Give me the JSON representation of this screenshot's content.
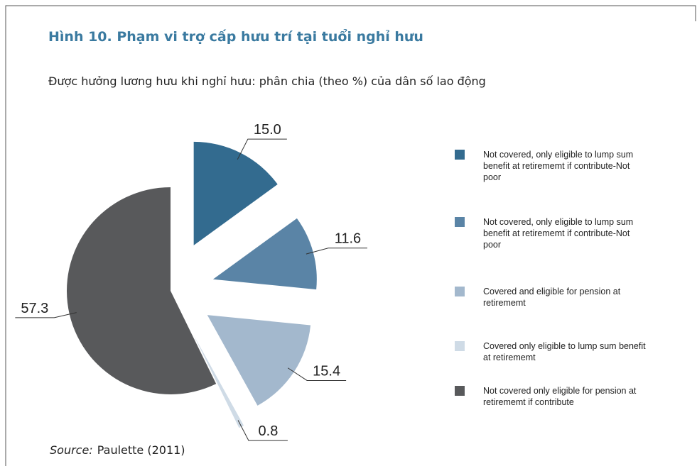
{
  "chart_data": {
    "type": "pie",
    "title": "Hình 10. Phạm vi trợ cấp hưu trí tại tuổi nghỉ hưu",
    "subtitle": "Được hưởng lương hưu khi nghỉ hưu: phân chia (theo %) của dân số lao động",
    "categories": [
      "Not covered, only eligible to lump sum benefit at retirememt if contribute-Not poor",
      "Not covered, only eligible to lump sum benefit at retirememt if contribute-Not poor",
      "Covered and eligible for pension at retirememt",
      "Covered only eligible to lump sum benefit at retirememt",
      "Not covered only eligible for pension at retirememt if contribute"
    ],
    "values": [
      15.0,
      11.6,
      15.4,
      0.8,
      57.3
    ],
    "value_labels": [
      "15.0",
      "11.6",
      "15.4",
      "0.8",
      "57.3"
    ],
    "colors": [
      "#336b8f",
      "#5a84a6",
      "#a3b8cd",
      "#cfdbe6",
      "#58595b"
    ],
    "source_label": "Source:",
    "source": "Paulette (2011)"
  }
}
